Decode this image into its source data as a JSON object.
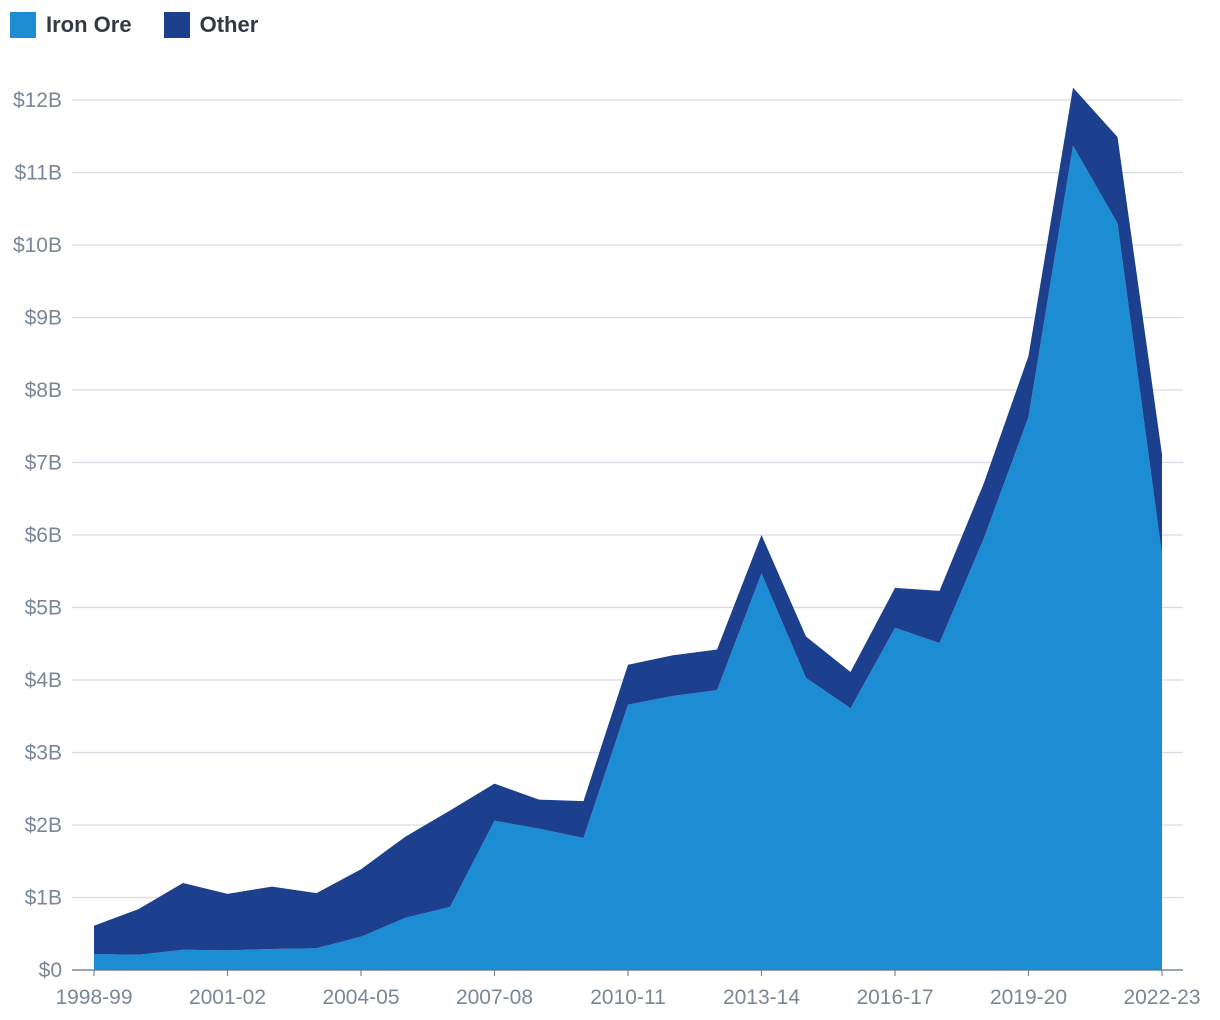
{
  "chart_data": {
    "type": "area",
    "stacked": true,
    "x": [
      "1998-99",
      "1999-00",
      "2000-01",
      "2001-02",
      "2002-03",
      "2003-04",
      "2004-05",
      "2005-06",
      "2006-07",
      "2007-08",
      "2008-09",
      "2009-10",
      "2010-11",
      "2011-12",
      "2012-13",
      "2013-14",
      "2014-15",
      "2015-16",
      "2016-17",
      "2017-18",
      "2018-19",
      "2019-20",
      "2020-21",
      "2021-22",
      "2022-23"
    ],
    "x_tick_labels": [
      "1998-99",
      "2001-02",
      "2004-05",
      "2007-08",
      "2010-11",
      "2013-14",
      "2016-17",
      "2019-20",
      "2022-23"
    ],
    "series": [
      {
        "name": "Iron Ore",
        "color": "#1c8cd3",
        "values": [
          0.22,
          0.21,
          0.28,
          0.27,
          0.29,
          0.3,
          0.46,
          0.72,
          0.87,
          2.06,
          1.95,
          1.82,
          3.66,
          3.78,
          3.86,
          5.47,
          4.03,
          3.61,
          4.72,
          4.51,
          5.96,
          7.63,
          11.37,
          10.3,
          5.73
        ]
      },
      {
        "name": "Other",
        "color": "#1c3f8e",
        "values": [
          0.39,
          0.63,
          0.92,
          0.78,
          0.86,
          0.76,
          0.93,
          1.12,
          1.33,
          0.51,
          0.4,
          0.51,
          0.55,
          0.56,
          0.56,
          0.53,
          0.57,
          0.5,
          0.55,
          0.72,
          0.76,
          0.84,
          0.8,
          1.19,
          1.38
        ]
      }
    ],
    "y_tick_labels": [
      "$0",
      "$1B",
      "$2B",
      "$3B",
      "$4B",
      "$5B",
      "$6B",
      "$7B",
      "$8B",
      "$9B",
      "$10B",
      "$11B",
      "$12B"
    ],
    "ylim": [
      0,
      12
    ],
    "title": "",
    "xlabel": "",
    "ylabel": "",
    "grid": true,
    "legend_position": "top-left"
  }
}
